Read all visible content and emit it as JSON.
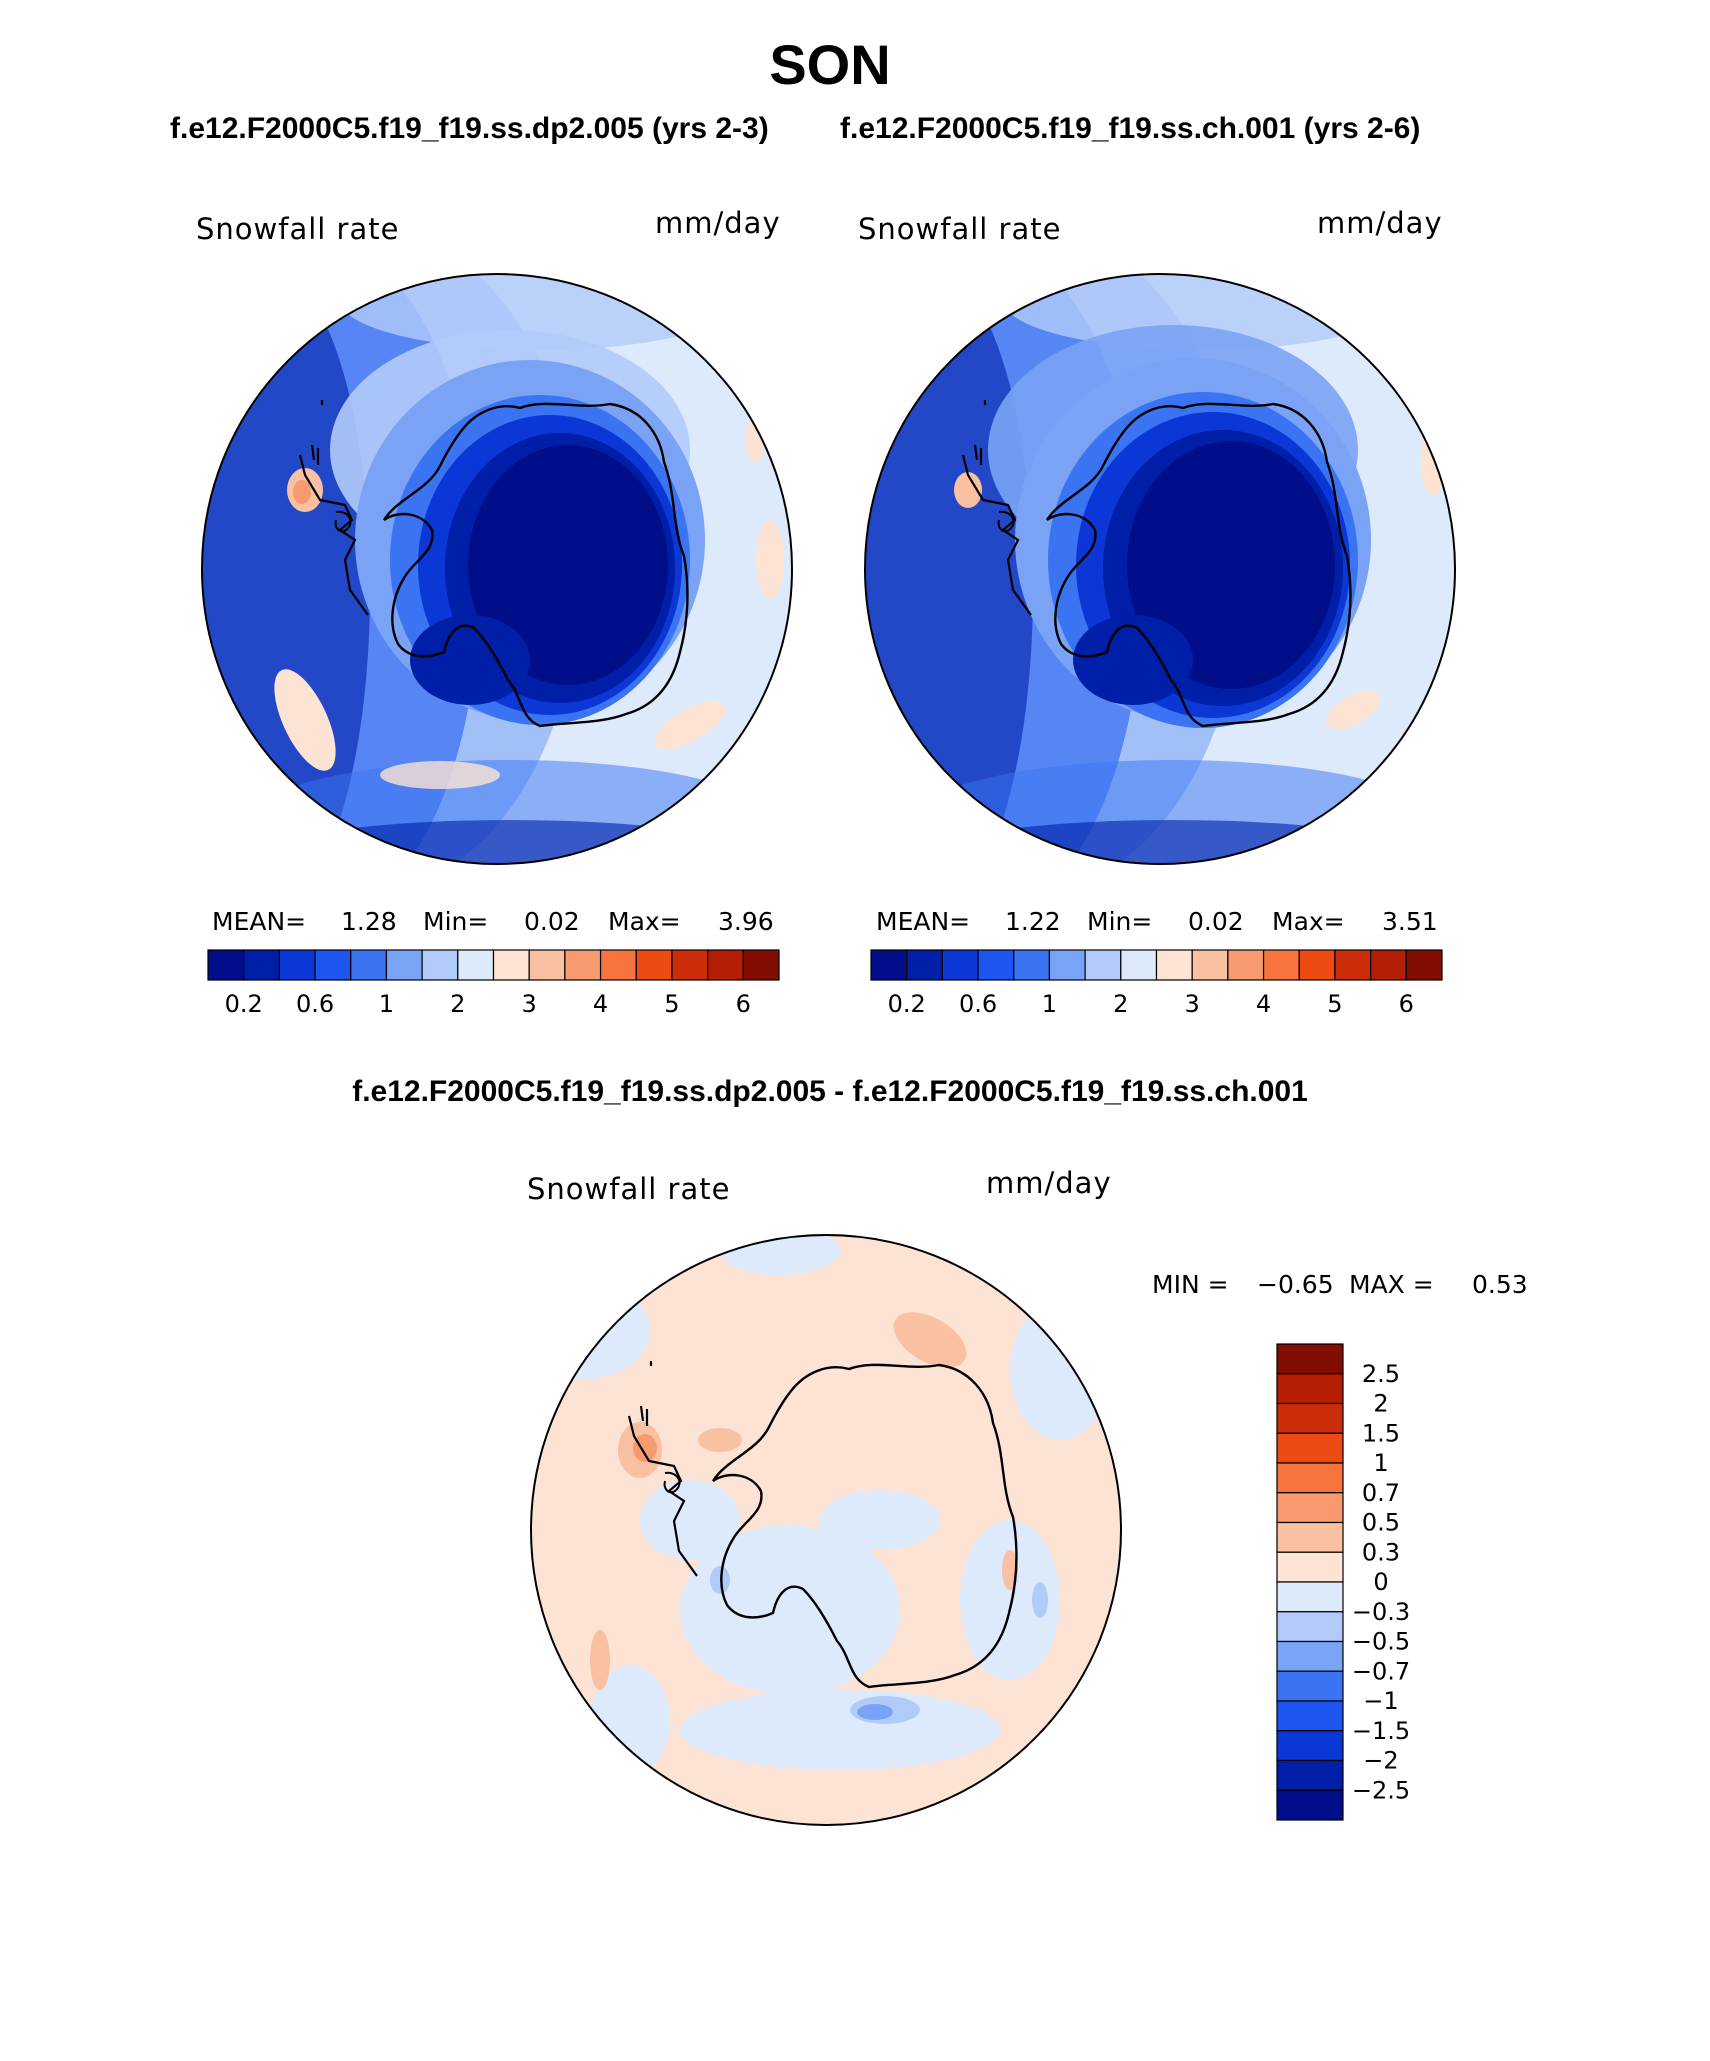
{
  "figure": {
    "title": "SON",
    "top_left_subtitle": "f.e12.F2000C5.f19_f19.ss.dp2.005 (yrs 2-3)",
    "top_right_subtitle": "f.e12.F2000C5.f19_f19.ss.ch.001 (yrs 2-6)",
    "diff_subtitle": "f.e12.F2000C5.f19_f19.ss.dp2.005 - f.e12.F2000C5.f19_f19.ss.ch.001"
  },
  "panels": {
    "left": {
      "variable": "Snowfall rate",
      "units": "mm/day",
      "mean_label": "MEAN=",
      "mean_value": "1.28",
      "min_label": "Min=",
      "min_value": "0.02",
      "max_label": "Max=",
      "max_value": "3.96"
    },
    "right": {
      "variable": "Snowfall rate",
      "units": "mm/day",
      "mean_label": "MEAN=",
      "mean_value": "1.22",
      "min_label": "Min=",
      "min_value": "0.02",
      "max_label": "Max=",
      "max_value": "3.51"
    },
    "diff": {
      "variable": "Snowfall rate",
      "units": "mm/day",
      "min_label": "MIN =",
      "min_value": "−0.65",
      "max_label": "MAX =",
      "max_value": "0.53"
    }
  },
  "colorbars": {
    "abs_colors": [
      "#000f89",
      "#001fa8",
      "#0a37d6",
      "#1c55f0",
      "#3a74f2",
      "#7aa3f5",
      "#b1cbf9",
      "#ddeafc",
      "#fde3d3",
      "#f9c0a2",
      "#f79a70",
      "#f7743f",
      "#ed4a14",
      "#cb2d08",
      "#b31e04",
      "#810c00"
    ],
    "abs_ticks": [
      "0.2",
      "0.6",
      "1",
      "2",
      "3",
      "4",
      "5",
      "6"
    ],
    "diff_colors": [
      "#000f89",
      "#001fa8",
      "#0a37d6",
      "#1c55f0",
      "#3a74f2",
      "#7aa3f5",
      "#b1cbf9",
      "#ddeafc",
      "#fde3d3",
      "#f9c0a2",
      "#f79a70",
      "#f7743f",
      "#ed4a14",
      "#cb2d08",
      "#b31e04",
      "#810c00"
    ],
    "diff_ticks": [
      "2.5",
      "2",
      "1.5",
      "1",
      "0.7",
      "0.5",
      "0.3",
      "0",
      "−0.3",
      "−0.5",
      "−0.7",
      "−1",
      "−1.5",
      "−2",
      "−2.5"
    ]
  },
  "map_colors": {
    "ocean_light": "#ddeafc",
    "band_1": "#b1cbf9",
    "band_2": "#7aa3f5",
    "band_3": "#3a74f2",
    "band_4": "#1c55f0",
    "band_5": "#0a37d6",
    "band_6": "#001fa8",
    "interior": "#000f89",
    "warm_1": "#fde3d3",
    "warm_2": "#f9c0a2",
    "warm_3": "#f79a70",
    "coast": "#000000"
  }
}
